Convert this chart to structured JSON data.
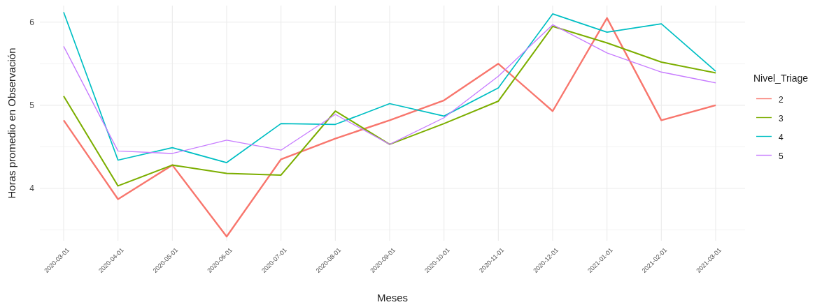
{
  "chart_data": {
    "type": "line",
    "xlabel": "Meses",
    "ylabel": "Horas promedio en Observación",
    "legend_title": "Nivel_Triage",
    "categories": [
      "2020-03-01",
      "2020-04-01",
      "2020-05-01",
      "2020-06-01",
      "2020-07-01",
      "2020-08-01",
      "2020-09-01",
      "2020-10-01",
      "2020-11-01",
      "2020-12-01",
      "2021-01-01",
      "2021-02-01",
      "2021-03-01"
    ],
    "series": [
      {
        "name": "2",
        "color": "#f8766d",
        "values": [
          4.82,
          3.87,
          4.28,
          3.42,
          4.35,
          4.6,
          4.82,
          5.06,
          5.5,
          4.93,
          6.05,
          4.82,
          5.0
        ]
      },
      {
        "name": "3",
        "color": "#7cae00",
        "values": [
          5.11,
          4.03,
          4.28,
          4.18,
          4.16,
          4.93,
          4.53,
          4.78,
          5.05,
          5.95,
          5.75,
          5.52,
          5.39
        ]
      },
      {
        "name": "4",
        "color": "#00bfc4",
        "values": [
          6.12,
          4.34,
          4.49,
          4.31,
          4.78,
          4.77,
          5.02,
          4.87,
          5.21,
          6.1,
          5.88,
          5.98,
          5.41
        ]
      },
      {
        "name": "5",
        "color": "#c77cff",
        "values": [
          5.71,
          4.45,
          4.42,
          4.58,
          4.46,
          4.89,
          4.53,
          4.85,
          5.35,
          5.97,
          5.63,
          5.4,
          5.27
        ]
      }
    ],
    "ylim": [
      3.37,
      6.2
    ],
    "yticks": [
      {
        "value": 3.5,
        "label": null
      },
      4,
      {
        "value": 4.5,
        "label": null
      },
      5,
      {
        "value": 5.5,
        "label": null
      },
      6
    ],
    "grid": true,
    "legend": "right",
    "marker": "none",
    "line_style": "solid"
  }
}
